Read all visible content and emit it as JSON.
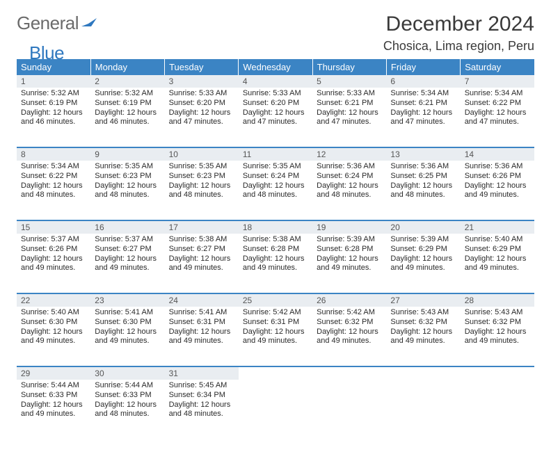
{
  "logo": {
    "word1": "General",
    "word2": "Blue",
    "word1_color": "#6b6b6b",
    "word2_color": "#2f78bf"
  },
  "title": "December 2024",
  "location": "Chosica, Lima region, Peru",
  "colors": {
    "header_bg": "#3b84c4",
    "header_text": "#ffffff",
    "daynum_bg": "#e9edf1",
    "row_divider": "#3b84c4",
    "page_bg": "#ffffff"
  },
  "fonts": {
    "title_size_pt": 22,
    "location_size_pt": 14,
    "header_size_pt": 10,
    "cell_size_pt": 8
  },
  "weekdays": [
    "Sunday",
    "Monday",
    "Tuesday",
    "Wednesday",
    "Thursday",
    "Friday",
    "Saturday"
  ],
  "weeks": [
    [
      {
        "n": "1",
        "sr": "Sunrise: 5:32 AM",
        "ss": "Sunset: 6:19 PM",
        "d1": "Daylight: 12 hours",
        "d2": "and 46 minutes."
      },
      {
        "n": "2",
        "sr": "Sunrise: 5:32 AM",
        "ss": "Sunset: 6:19 PM",
        "d1": "Daylight: 12 hours",
        "d2": "and 46 minutes."
      },
      {
        "n": "3",
        "sr": "Sunrise: 5:33 AM",
        "ss": "Sunset: 6:20 PM",
        "d1": "Daylight: 12 hours",
        "d2": "and 47 minutes."
      },
      {
        "n": "4",
        "sr": "Sunrise: 5:33 AM",
        "ss": "Sunset: 6:20 PM",
        "d1": "Daylight: 12 hours",
        "d2": "and 47 minutes."
      },
      {
        "n": "5",
        "sr": "Sunrise: 5:33 AM",
        "ss": "Sunset: 6:21 PM",
        "d1": "Daylight: 12 hours",
        "d2": "and 47 minutes."
      },
      {
        "n": "6",
        "sr": "Sunrise: 5:34 AM",
        "ss": "Sunset: 6:21 PM",
        "d1": "Daylight: 12 hours",
        "d2": "and 47 minutes."
      },
      {
        "n": "7",
        "sr": "Sunrise: 5:34 AM",
        "ss": "Sunset: 6:22 PM",
        "d1": "Daylight: 12 hours",
        "d2": "and 47 minutes."
      }
    ],
    [
      {
        "n": "8",
        "sr": "Sunrise: 5:34 AM",
        "ss": "Sunset: 6:22 PM",
        "d1": "Daylight: 12 hours",
        "d2": "and 48 minutes."
      },
      {
        "n": "9",
        "sr": "Sunrise: 5:35 AM",
        "ss": "Sunset: 6:23 PM",
        "d1": "Daylight: 12 hours",
        "d2": "and 48 minutes."
      },
      {
        "n": "10",
        "sr": "Sunrise: 5:35 AM",
        "ss": "Sunset: 6:23 PM",
        "d1": "Daylight: 12 hours",
        "d2": "and 48 minutes."
      },
      {
        "n": "11",
        "sr": "Sunrise: 5:35 AM",
        "ss": "Sunset: 6:24 PM",
        "d1": "Daylight: 12 hours",
        "d2": "and 48 minutes."
      },
      {
        "n": "12",
        "sr": "Sunrise: 5:36 AM",
        "ss": "Sunset: 6:24 PM",
        "d1": "Daylight: 12 hours",
        "d2": "and 48 minutes."
      },
      {
        "n": "13",
        "sr": "Sunrise: 5:36 AM",
        "ss": "Sunset: 6:25 PM",
        "d1": "Daylight: 12 hours",
        "d2": "and 48 minutes."
      },
      {
        "n": "14",
        "sr": "Sunrise: 5:36 AM",
        "ss": "Sunset: 6:26 PM",
        "d1": "Daylight: 12 hours",
        "d2": "and 49 minutes."
      }
    ],
    [
      {
        "n": "15",
        "sr": "Sunrise: 5:37 AM",
        "ss": "Sunset: 6:26 PM",
        "d1": "Daylight: 12 hours",
        "d2": "and 49 minutes."
      },
      {
        "n": "16",
        "sr": "Sunrise: 5:37 AM",
        "ss": "Sunset: 6:27 PM",
        "d1": "Daylight: 12 hours",
        "d2": "and 49 minutes."
      },
      {
        "n": "17",
        "sr": "Sunrise: 5:38 AM",
        "ss": "Sunset: 6:27 PM",
        "d1": "Daylight: 12 hours",
        "d2": "and 49 minutes."
      },
      {
        "n": "18",
        "sr": "Sunrise: 5:38 AM",
        "ss": "Sunset: 6:28 PM",
        "d1": "Daylight: 12 hours",
        "d2": "and 49 minutes."
      },
      {
        "n": "19",
        "sr": "Sunrise: 5:39 AM",
        "ss": "Sunset: 6:28 PM",
        "d1": "Daylight: 12 hours",
        "d2": "and 49 minutes."
      },
      {
        "n": "20",
        "sr": "Sunrise: 5:39 AM",
        "ss": "Sunset: 6:29 PM",
        "d1": "Daylight: 12 hours",
        "d2": "and 49 minutes."
      },
      {
        "n": "21",
        "sr": "Sunrise: 5:40 AM",
        "ss": "Sunset: 6:29 PM",
        "d1": "Daylight: 12 hours",
        "d2": "and 49 minutes."
      }
    ],
    [
      {
        "n": "22",
        "sr": "Sunrise: 5:40 AM",
        "ss": "Sunset: 6:30 PM",
        "d1": "Daylight: 12 hours",
        "d2": "and 49 minutes."
      },
      {
        "n": "23",
        "sr": "Sunrise: 5:41 AM",
        "ss": "Sunset: 6:30 PM",
        "d1": "Daylight: 12 hours",
        "d2": "and 49 minutes."
      },
      {
        "n": "24",
        "sr": "Sunrise: 5:41 AM",
        "ss": "Sunset: 6:31 PM",
        "d1": "Daylight: 12 hours",
        "d2": "and 49 minutes."
      },
      {
        "n": "25",
        "sr": "Sunrise: 5:42 AM",
        "ss": "Sunset: 6:31 PM",
        "d1": "Daylight: 12 hours",
        "d2": "and 49 minutes."
      },
      {
        "n": "26",
        "sr": "Sunrise: 5:42 AM",
        "ss": "Sunset: 6:32 PM",
        "d1": "Daylight: 12 hours",
        "d2": "and 49 minutes."
      },
      {
        "n": "27",
        "sr": "Sunrise: 5:43 AM",
        "ss": "Sunset: 6:32 PM",
        "d1": "Daylight: 12 hours",
        "d2": "and 49 minutes."
      },
      {
        "n": "28",
        "sr": "Sunrise: 5:43 AM",
        "ss": "Sunset: 6:32 PM",
        "d1": "Daylight: 12 hours",
        "d2": "and 49 minutes."
      }
    ],
    [
      {
        "n": "29",
        "sr": "Sunrise: 5:44 AM",
        "ss": "Sunset: 6:33 PM",
        "d1": "Daylight: 12 hours",
        "d2": "and 49 minutes."
      },
      {
        "n": "30",
        "sr": "Sunrise: 5:44 AM",
        "ss": "Sunset: 6:33 PM",
        "d1": "Daylight: 12 hours",
        "d2": "and 48 minutes."
      },
      {
        "n": "31",
        "sr": "Sunrise: 5:45 AM",
        "ss": "Sunset: 6:34 PM",
        "d1": "Daylight: 12 hours",
        "d2": "and 48 minutes."
      },
      null,
      null,
      null,
      null
    ]
  ]
}
